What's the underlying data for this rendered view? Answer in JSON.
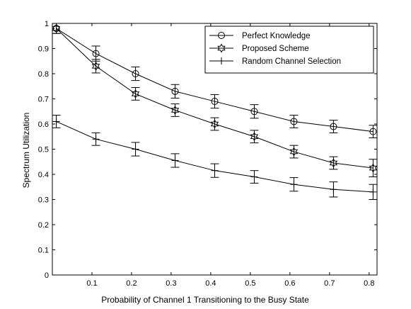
{
  "chart_data": {
    "type": "line",
    "title": "",
    "xlabel": "Probability of Channel 1 Transitioning to the Busy State",
    "ylabel": "Spectrum Utilization",
    "xlim": [
      0,
      0.82
    ],
    "ylim": [
      0,
      1
    ],
    "x_ticks": [
      0.1,
      0.2,
      0.3,
      0.4,
      0.5,
      0.6,
      0.7,
      0.8
    ],
    "x_tick_labels": [
      "0.1",
      "0.2",
      "0.3",
      "0.4",
      "0.5",
      "0.6",
      "0.7",
      "0.8"
    ],
    "y_ticks": [
      0,
      0.1,
      0.2,
      0.3,
      0.4,
      0.5,
      0.6,
      0.7,
      0.8,
      0.9,
      1
    ],
    "y_tick_labels": [
      "0",
      "0.1",
      "0.2",
      "0.3",
      "0.4",
      "0.5",
      "0.6",
      "0.7",
      "0.8",
      "0.9",
      "1"
    ],
    "grid": false,
    "legend_position": "top-right",
    "x": [
      0.01,
      0.11,
      0.21,
      0.31,
      0.41,
      0.51,
      0.61,
      0.71,
      0.81
    ],
    "series": [
      {
        "name": "Perfect Knowledge",
        "marker": "circle",
        "values": [
          0.98,
          0.88,
          0.8,
          0.73,
          0.69,
          0.65,
          0.61,
          0.59,
          0.57
        ],
        "errors": [
          0.02,
          0.03,
          0.027,
          0.027,
          0.027,
          0.027,
          0.025,
          0.025,
          0.025
        ]
      },
      {
        "name": "Proposed Scheme",
        "marker": "hexagram",
        "values": [
          0.98,
          0.83,
          0.72,
          0.655,
          0.6,
          0.55,
          0.49,
          0.445,
          0.425
        ],
        "errors": [
          0.02,
          0.027,
          0.025,
          0.025,
          0.025,
          0.025,
          0.025,
          0.025,
          0.035
        ]
      },
      {
        "name": "Random Channel Selection",
        "marker": "plus",
        "values": [
          0.61,
          0.54,
          0.5,
          0.455,
          0.415,
          0.39,
          0.36,
          0.34,
          0.33
        ],
        "errors": [
          0.025,
          0.025,
          0.027,
          0.027,
          0.027,
          0.025,
          0.027,
          0.03,
          0.03
        ]
      }
    ]
  }
}
